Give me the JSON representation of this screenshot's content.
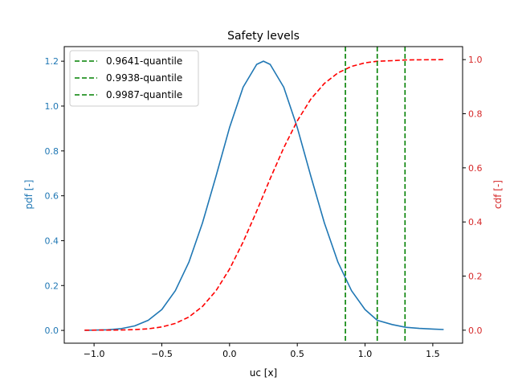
{
  "chart_data": {
    "type": "line",
    "title": "Safety levels",
    "xlabel": "uc [x]",
    "ylabel_left": "pdf [-]",
    "ylabel_right": "cdf [-]",
    "xlim": [
      -1.22,
      1.72
    ],
    "ylim_left": [
      -0.057,
      1.265
    ],
    "ylim_right": [
      -0.048,
      1.048
    ],
    "x_ticks": [
      -1.0,
      -0.5,
      0.0,
      0.5,
      1.0,
      1.5
    ],
    "x_tick_labels": [
      "−1.0",
      "−0.5",
      "0.0",
      "0.5",
      "1.0",
      "1.5"
    ],
    "y_left_ticks": [
      0.0,
      0.2,
      0.4,
      0.6,
      0.8,
      1.0,
      1.2
    ],
    "y_left_tick_labels": [
      "0.0",
      "0.2",
      "0.4",
      "0.6",
      "0.8",
      "1.0",
      "1.2"
    ],
    "y_right_ticks": [
      0.0,
      0.2,
      0.4,
      0.6,
      0.8,
      1.0
    ],
    "y_right_tick_labels": [
      "0.0",
      "0.2",
      "0.4",
      "0.6",
      "0.8",
      "1.0"
    ],
    "grid": false,
    "legend_placement": "upper-left",
    "x": [
      -1.07,
      -0.9,
      -0.8,
      -0.7,
      -0.6,
      -0.5,
      -0.4,
      -0.3,
      -0.2,
      -0.1,
      0.0,
      0.1,
      0.2,
      0.25,
      0.3,
      0.4,
      0.5,
      0.6,
      0.7,
      0.8,
      0.9,
      1.0,
      1.09,
      1.2,
      1.3,
      1.4,
      1.5,
      1.58
    ],
    "series": [
      {
        "axis": "left",
        "color": "#1f77b4",
        "style": "solid",
        "values": [
          0.0004,
          0.003,
          0.008,
          0.02,
          0.045,
          0.093,
          0.177,
          0.304,
          0.479,
          0.688,
          0.904,
          1.084,
          1.186,
          1.2,
          1.186,
          1.084,
          0.904,
          0.688,
          0.479,
          0.304,
          0.177,
          0.093,
          0.045,
          0.026,
          0.014,
          0.009,
          0.006,
          0.004
        ]
      },
      {
        "axis": "right",
        "color": "#ff0000",
        "style": "dashed",
        "values": [
          0.0,
          0.0003,
          0.0008,
          0.0021,
          0.0052,
          0.0119,
          0.0251,
          0.0488,
          0.0877,
          0.146,
          0.226,
          0.326,
          0.44,
          0.5,
          0.56,
          0.674,
          0.774,
          0.854,
          0.912,
          0.951,
          0.975,
          0.988,
          0.9938,
          0.996,
          0.9987,
          0.9993,
          0.9997,
          0.9999
        ]
      }
    ],
    "vlines": [
      {
        "name": "0.9641-quantile",
        "x": 0.855,
        "color": "#008000"
      },
      {
        "name": "0.9938-quantile",
        "x": 1.09,
        "color": "#008000"
      },
      {
        "name": "0.9987-quantile",
        "x": 1.295,
        "color": "#008000"
      }
    ],
    "colors": {
      "left_axis": "#1f77b4",
      "right_axis": "#d62728"
    }
  }
}
